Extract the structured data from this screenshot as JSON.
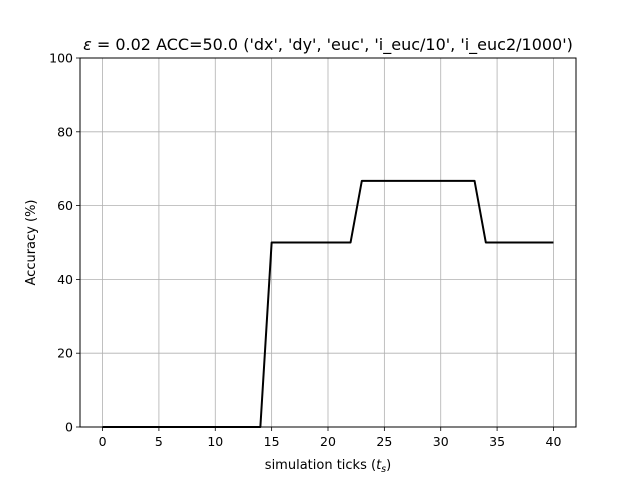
{
  "chart_data": {
    "type": "line",
    "title": "ε = 0.02 ACC=50.0 ('dx', 'dy', 'euc', 'i_euc/10', 'i_euc2/1000')",
    "title_parts": {
      "symbol": "ε",
      "rest": " = 0.02 ACC=50.0 ('dx', 'dy', 'euc', 'i_euc/10', 'i_euc2/1000')"
    },
    "xlabel": "simulation ticks (t_s)",
    "xlabel_parts": {
      "prefix": "simulation ticks (",
      "var": "t",
      "sub": "s",
      "suffix": ")"
    },
    "ylabel": "Accuracy (%)",
    "xlim": [
      -2,
      42
    ],
    "ylim": [
      0,
      100
    ],
    "xticks": [
      0,
      5,
      10,
      15,
      20,
      25,
      30,
      35,
      40
    ],
    "yticks": [
      0,
      20,
      40,
      60,
      80,
      100
    ],
    "grid": true,
    "series": [
      {
        "color": "#000000",
        "x": [
          0,
          1,
          2,
          3,
          4,
          5,
          6,
          7,
          8,
          9,
          10,
          11,
          12,
          13,
          14,
          15,
          16,
          17,
          18,
          19,
          20,
          21,
          22,
          23,
          24,
          25,
          26,
          27,
          28,
          29,
          30,
          31,
          32,
          33,
          34,
          35,
          36,
          37,
          38,
          39,
          40
        ],
        "y": [
          0,
          0,
          0,
          0,
          0,
          0,
          0,
          0,
          0,
          0,
          0,
          0,
          0,
          0,
          0,
          50,
          50,
          50,
          50,
          50,
          50,
          50,
          50,
          66.7,
          66.7,
          66.7,
          66.7,
          66.7,
          66.7,
          66.7,
          66.7,
          66.7,
          66.7,
          66.7,
          50,
          50,
          50,
          50,
          50,
          50,
          50
        ]
      }
    ]
  }
}
